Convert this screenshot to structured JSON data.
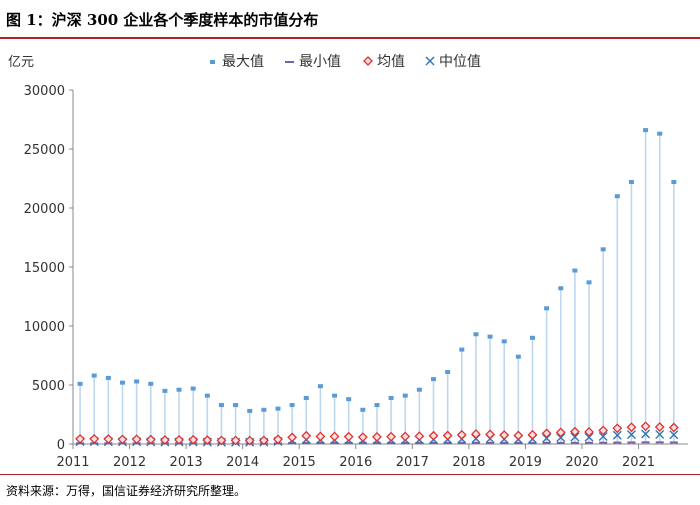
{
  "figure": {
    "title": "图 1：沪深 300 企业各个季度样本的市值分布",
    "source": "资料来源：万得，国信证券经济研究所整理。"
  },
  "chart_data": {
    "type": "bar",
    "unit": "亿元",
    "legend": [
      "最大值",
      "最小值",
      "均值",
      "中位值"
    ],
    "legend_placement": "top",
    "x_tick_labels": [
      "2011",
      "2012",
      "2013",
      "2014",
      "2015",
      "2016",
      "2017",
      "2018",
      "2019",
      "2020",
      "2021"
    ],
    "periods_per_year": 4,
    "ylim": [
      0,
      30000
    ],
    "y_ticks": [
      0,
      5000,
      10000,
      15000,
      20000,
      25000,
      30000
    ],
    "grid": false,
    "series": [
      {
        "name": "最大值",
        "values": [
          5100,
          5800,
          5600,
          5200,
          5300,
          5100,
          4500,
          4600,
          4700,
          4100,
          3300,
          3300,
          2800,
          2900,
          3000,
          3300,
          3900,
          4900,
          4100,
          3800,
          2900,
          3300,
          3900,
          4100,
          4600,
          5500,
          6100,
          8000,
          9300,
          9100,
          8700,
          7400,
          9000,
          11500,
          13200,
          14700,
          13700,
          16500,
          21000,
          22200,
          26600,
          26300,
          22200
        ]
      },
      {
        "name": "最小值",
        "values": [
          60,
          60,
          60,
          60,
          60,
          60,
          60,
          60,
          60,
          60,
          60,
          60,
          60,
          60,
          60,
          70,
          80,
          90,
          90,
          90,
          80,
          80,
          80,
          80,
          80,
          90,
          90,
          90,
          90,
          90,
          80,
          80,
          80,
          90,
          90,
          100,
          100,
          110,
          120,
          130,
          140,
          140,
          130
        ]
      },
      {
        "name": "均值",
        "values": [
          430,
          430,
          420,
          390,
          400,
          370,
          340,
          350,
          360,
          330,
          300,
          300,
          290,
          300,
          400,
          560,
          700,
          640,
          640,
          620,
          580,
          600,
          620,
          640,
          660,
          700,
          720,
          780,
          840,
          820,
          760,
          720,
          780,
          900,
          980,
          1050,
          1020,
          1150,
          1330,
          1420,
          1500,
          1440,
          1400
        ]
      },
      {
        "name": "中位值",
        "values": [
          200,
          200,
          190,
          180,
          185,
          175,
          160,
          165,
          170,
          155,
          150,
          150,
          145,
          150,
          210,
          310,
          380,
          360,
          350,
          340,
          320,
          330,
          340,
          350,
          360,
          380,
          390,
          420,
          460,
          450,
          410,
          390,
          420,
          490,
          540,
          590,
          570,
          640,
          740,
          790,
          850,
          810,
          780
        ]
      }
    ]
  }
}
